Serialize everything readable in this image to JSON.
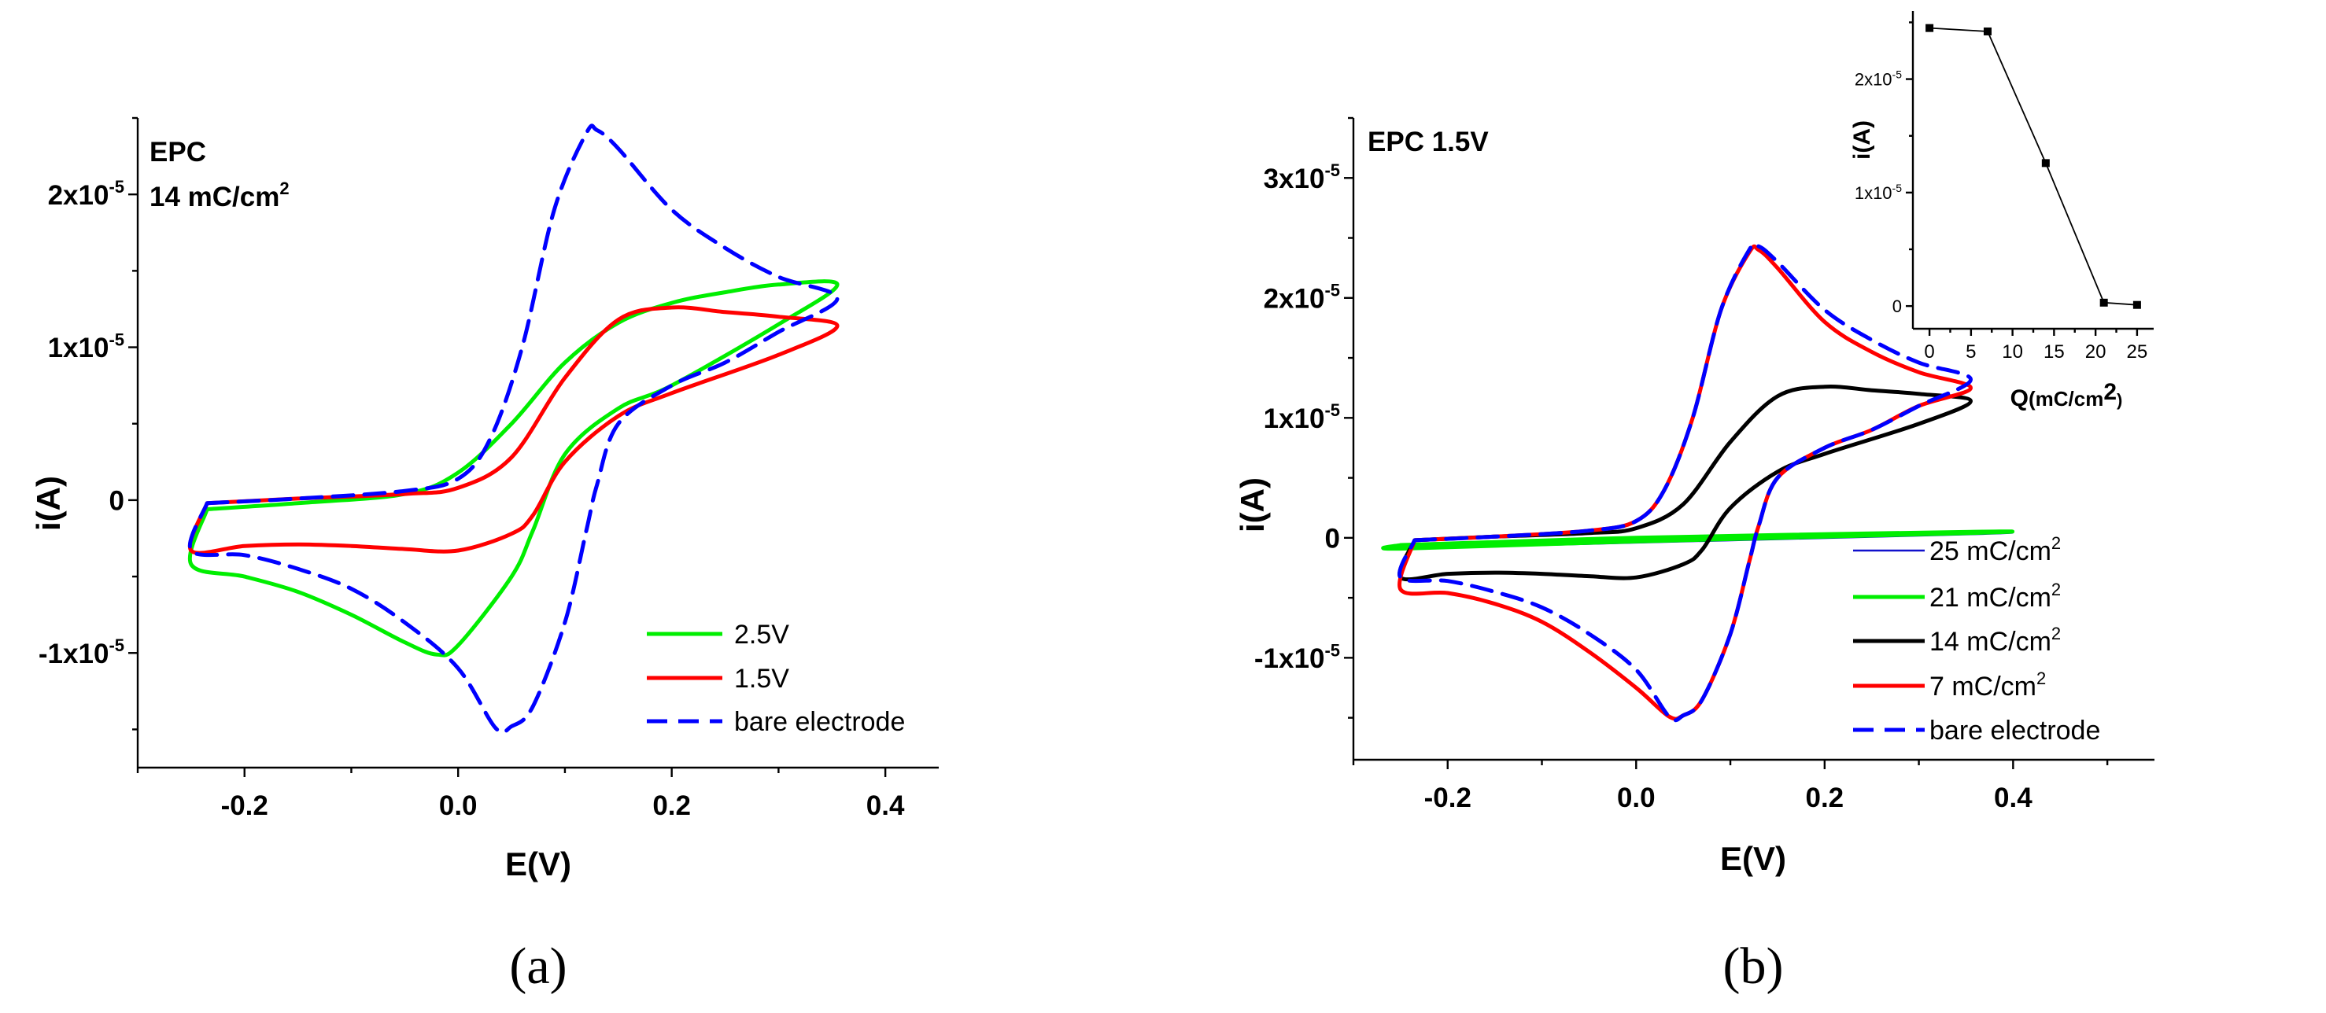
{
  "chart_data": [
    {
      "type": "line",
      "panel": "a",
      "panel_label": "(a)",
      "annotation_line1": "EPC",
      "annotation_line2": "14 mC/cm",
      "annotation_sup": "2",
      "xlabel": "E(V)",
      "ylabel": "i(A)",
      "xlim": [
        -0.3,
        0.45
      ],
      "ylim": [
        -1.75e-05,
        2.5e-05
      ],
      "xticks": [
        -0.2,
        0.0,
        0.2,
        0.4
      ],
      "xtick_labels": [
        "-0.2",
        "0.0",
        "0.2",
        "0.4"
      ],
      "yticks": [
        -1e-05,
        0,
        1e-05,
        2e-05
      ],
      "ytick_labels": [
        {
          "base": "-1x10",
          "exp": "-5"
        },
        {
          "base": "0",
          "exp": ""
        },
        {
          "base": "1x10",
          "exp": "-5"
        },
        {
          "base": "2x10",
          "exp": "-5"
        }
      ],
      "series": [
        {
          "name": "2.5V",
          "color": "#00ee00",
          "dash": "solid",
          "x": [
            -0.235,
            -0.15,
            -0.05,
            0.0,
            0.05,
            0.1,
            0.15,
            0.2,
            0.25,
            0.3,
            0.355,
            0.3,
            0.2,
            0.15,
            0.1,
            0.07,
            0.05,
            0.0,
            -0.02,
            -0.05,
            -0.1,
            -0.15,
            -0.2,
            -0.25,
            -0.235
          ],
          "y": [
            -6e-07,
            -2e-07,
            4e-07,
            1.8e-06,
            5e-06,
            9e-06,
            1.16e-05,
            1.29e-05,
            1.36e-05,
            1.41e-05,
            1.41e-05,
            1.15e-05,
            7.5e-06,
            6e-06,
            3e-06,
            -2e-06,
            -5e-06,
            -9.5e-06,
            -1.01e-05,
            -9.3e-06,
            -7.5e-06,
            -6e-06,
            -5e-06,
            -4.2e-06,
            -6e-07
          ]
        },
        {
          "name": "1.5V",
          "color": "#ff0000",
          "dash": "solid",
          "x": [
            -0.235,
            -0.15,
            -0.05,
            0.0,
            0.05,
            0.1,
            0.15,
            0.2,
            0.25,
            0.3,
            0.355,
            0.3,
            0.2,
            0.15,
            0.1,
            0.07,
            0.05,
            0.0,
            -0.05,
            -0.1,
            -0.15,
            -0.2,
            -0.25,
            -0.235
          ],
          "y": [
            -2e-07,
            1e-07,
            4e-07,
            8e-07,
            2.8e-06,
            8e-06,
            1.18e-05,
            1.26e-05,
            1.23e-05,
            1.2e-05,
            1.14e-05,
            9.5e-06,
            7e-06,
            5.5e-06,
            2.5e-06,
            -1e-06,
            -2.2e-06,
            -3.3e-06,
            -3.2e-06,
            -3e-06,
            -2.9e-06,
            -3e-06,
            -3.3e-06,
            -2e-07
          ]
        },
        {
          "name": "bare electrode",
          "color": "#0000ff",
          "dash": "dashed",
          "x": [
            -0.235,
            -0.15,
            -0.05,
            0.0,
            0.03,
            0.06,
            0.09,
            0.12,
            0.13,
            0.15,
            0.2,
            0.25,
            0.3,
            0.355,
            0.3,
            0.25,
            0.2,
            0.15,
            0.13,
            0.12,
            0.1,
            0.07,
            0.05,
            0.035,
            0.0,
            -0.05,
            -0.1,
            -0.15,
            -0.2,
            -0.25,
            -0.235
          ],
          "y": [
            -2e-07,
            1e-07,
            6e-07,
            1.4e-06,
            4e-06,
            1e-05,
            1.9e-05,
            2.4e-05,
            2.42e-05,
            2.3e-05,
            1.9e-05,
            1.65e-05,
            1.46e-05,
            1.32e-05,
            1.1e-05,
            9e-06,
            7.5e-06,
            5e-06,
            1e-06,
            -2e-06,
            -8e-06,
            -1.35e-05,
            -1.48e-05,
            -1.49e-05,
            -1.1e-05,
            -8e-06,
            -5.8e-06,
            -4.5e-06,
            -3.6e-06,
            -3.3e-06,
            -2e-07
          ]
        }
      ]
    },
    {
      "type": "line",
      "panel": "b",
      "panel_label": "(b)",
      "annotation_line1": "EPC 1.5V",
      "xlabel": "E(V)",
      "ylabel": "i(A)",
      "xlim": [
        -0.3,
        0.55
      ],
      "ylim": [
        -1.85e-05,
        3.5e-05
      ],
      "xticks": [
        -0.2,
        0.0,
        0.2,
        0.4
      ],
      "xtick_labels": [
        "-0.2",
        "0.0",
        "0.2",
        "0.4"
      ],
      "yticks": [
        -1e-05,
        0,
        1e-05,
        2e-05,
        3e-05
      ],
      "ytick_labels": [
        {
          "base": "-1x10",
          "exp": "-5"
        },
        {
          "base": "0",
          "exp": ""
        },
        {
          "base": "1x10",
          "exp": "-5"
        },
        {
          "base": "2x10",
          "exp": "-5"
        },
        {
          "base": "3x10",
          "exp": "-5"
        }
      ],
      "series": [
        {
          "name": "25 mC/cm",
          "sup": "2",
          "color": "#1010cc",
          "dash": "thin",
          "x": [
            -0.25,
            0.0,
            0.355,
            0.355,
            0.0,
            -0.25,
            -0.25
          ],
          "y": [
            -7e-07,
            -2e-07,
            4e-07,
            3e-07,
            -4e-07,
            -9e-07,
            -7e-07
          ]
        },
        {
          "name": "21 mC/cm",
          "sup": "2",
          "color": "#00ee00",
          "dash": "solid",
          "x": [
            -0.25,
            0.0,
            0.355,
            0.355,
            0.0,
            -0.25,
            -0.25
          ],
          "y": [
            -6e-07,
            0.0,
            5e-07,
            4e-07,
            -3e-07,
            -9e-07,
            -6e-07
          ]
        },
        {
          "name": "14 mC/cm",
          "sup": "2",
          "color": "#000000",
          "dash": "solid",
          "x": [
            -0.235,
            -0.15,
            -0.05,
            0.0,
            0.05,
            0.1,
            0.15,
            0.2,
            0.25,
            0.3,
            0.355,
            0.3,
            0.2,
            0.15,
            0.1,
            0.07,
            0.05,
            0.0,
            -0.05,
            -0.1,
            -0.15,
            -0.2,
            -0.25,
            -0.235
          ],
          "y": [
            -2e-07,
            1e-07,
            4e-07,
            8e-07,
            2.8e-06,
            8e-06,
            1.18e-05,
            1.26e-05,
            1.23e-05,
            1.2e-05,
            1.14e-05,
            9.5e-06,
            7e-06,
            5.5e-06,
            2.5e-06,
            -1e-06,
            -2.2e-06,
            -3.3e-06,
            -3.2e-06,
            -3e-06,
            -2.9e-06,
            -3e-06,
            -3.3e-06,
            -2e-07
          ]
        },
        {
          "name": "7 mC/cm",
          "sup": "2",
          "color": "#ff0000",
          "dash": "solid",
          "x": [
            -0.235,
            -0.15,
            -0.05,
            0.0,
            0.03,
            0.06,
            0.09,
            0.12,
            0.13,
            0.15,
            0.2,
            0.25,
            0.3,
            0.355,
            0.3,
            0.25,
            0.2,
            0.15,
            0.13,
            0.12,
            0.1,
            0.07,
            0.05,
            0.035,
            0.0,
            -0.05,
            -0.1,
            -0.15,
            -0.2,
            -0.25,
            -0.235
          ],
          "y": [
            -2e-07,
            1e-07,
            6e-07,
            1.4e-06,
            4e-06,
            1e-05,
            1.9e-05,
            2.38e-05,
            2.4e-05,
            2.25e-05,
            1.8e-05,
            1.55e-05,
            1.38e-05,
            1.25e-05,
            1.1e-05,
            9e-06,
            7.5e-06,
            5e-06,
            1e-06,
            -2e-06,
            -8e-06,
            -1.35e-05,
            -1.48e-05,
            -1.49e-05,
            -1.25e-05,
            -9.5e-06,
            -7e-06,
            -5.5e-06,
            -4.6e-06,
            -4.3e-06,
            -2e-07
          ]
        },
        {
          "name": "bare electrode",
          "sup": "",
          "color": "#0000ff",
          "dash": "dashed",
          "x": [
            -0.235,
            -0.15,
            -0.05,
            0.0,
            0.03,
            0.06,
            0.09,
            0.12,
            0.13,
            0.15,
            0.2,
            0.25,
            0.3,
            0.355,
            0.3,
            0.25,
            0.2,
            0.15,
            0.13,
            0.12,
            0.1,
            0.07,
            0.05,
            0.035,
            0.0,
            -0.05,
            -0.1,
            -0.15,
            -0.2,
            -0.25,
            -0.235
          ],
          "y": [
            -2e-07,
            1e-07,
            6e-07,
            1.4e-06,
            4e-06,
            1e-05,
            1.9e-05,
            2.4e-05,
            2.43e-05,
            2.3e-05,
            1.9e-05,
            1.65e-05,
            1.46e-05,
            1.32e-05,
            1.1e-05,
            9e-06,
            7.5e-06,
            5e-06,
            1e-06,
            -2e-06,
            -8e-06,
            -1.35e-05,
            -1.48e-05,
            -1.49e-05,
            -1.1e-05,
            -8e-06,
            -5.8e-06,
            -4.5e-06,
            -3.6e-06,
            -3.3e-06,
            -2e-07
          ]
        }
      ]
    },
    {
      "type": "line",
      "panel": "b-inset",
      "xlabel": "Q",
      "xlabel_unit": "(mC/cm",
      "xlabel_sup": "2",
      "xlabel_close": ")",
      "ylabel": "i(A)",
      "xlim": [
        -2,
        27
      ],
      "ylim": [
        -2e-06,
        2.6e-05
      ],
      "xticks": [
        0,
        5,
        10,
        15,
        20,
        25
      ],
      "xtick_labels": [
        "0",
        "5",
        "10",
        "15",
        "20",
        "25"
      ],
      "yticks": [
        0,
        1e-05,
        2e-05
      ],
      "ytick_labels": [
        {
          "base": "0",
          "exp": ""
        },
        {
          "base": "1x10",
          "exp": "-5"
        },
        {
          "base": "2x10",
          "exp": "-5"
        }
      ],
      "x": [
        0,
        7,
        14,
        21,
        25
      ],
      "y": [
        2.45e-05,
        2.42e-05,
        1.26e-05,
        3e-07,
        1e-07
      ]
    }
  ]
}
